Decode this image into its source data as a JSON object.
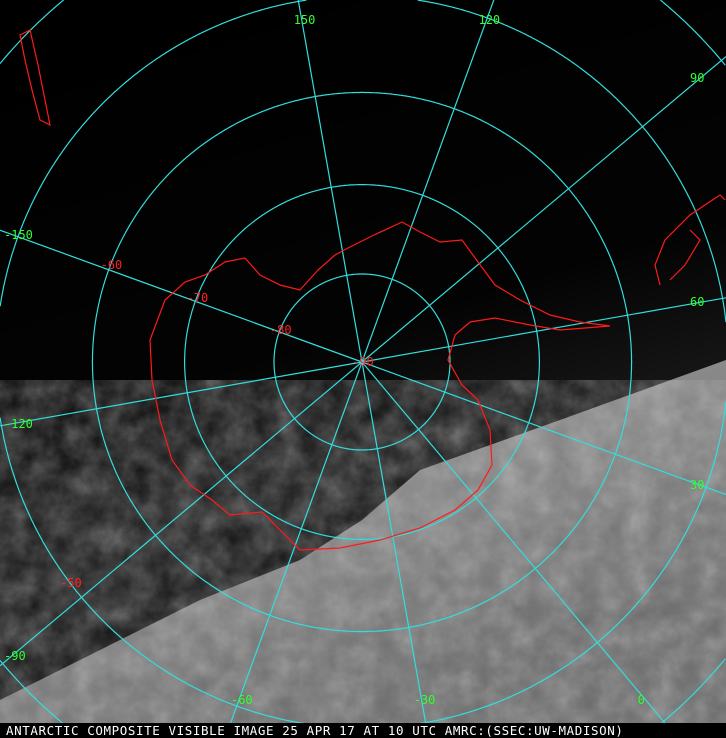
{
  "caption": "ANTARCTIC COMPOSITE VISIBLE IMAGE 25 APR 17 AT 10 UTC AMRC:(SSEC:UW-MADISON)",
  "projection": "polar stereographic (south pole)",
  "colors": {
    "grid": "#33dddd",
    "coastline": "#ff1a1a",
    "longitude_labels": "#33ff33",
    "latitude_labels": "#ff2222",
    "background": "#000000"
  },
  "longitudes": [
    {
      "value": 150,
      "label": "150"
    },
    {
      "value": 120,
      "label": "120"
    },
    {
      "value": 90,
      "label": "90"
    },
    {
      "value": 60,
      "label": "60"
    },
    {
      "value": 30,
      "label": "30"
    },
    {
      "value": 0,
      "label": "0"
    },
    {
      "value": -30,
      "label": "-30"
    },
    {
      "value": -60,
      "label": "-60"
    },
    {
      "value": -90,
      "label": "-90"
    },
    {
      "value": -120,
      "label": "-120"
    },
    {
      "value": -150,
      "label": "-150"
    }
  ],
  "latitudes": [
    {
      "value": -90,
      "label": "-90"
    },
    {
      "value": -80,
      "label": "-80"
    },
    {
      "value": -70,
      "label": "-70"
    },
    {
      "value": -60,
      "label": "-60"
    },
    {
      "value": -50,
      "label": "-50"
    }
  ]
}
